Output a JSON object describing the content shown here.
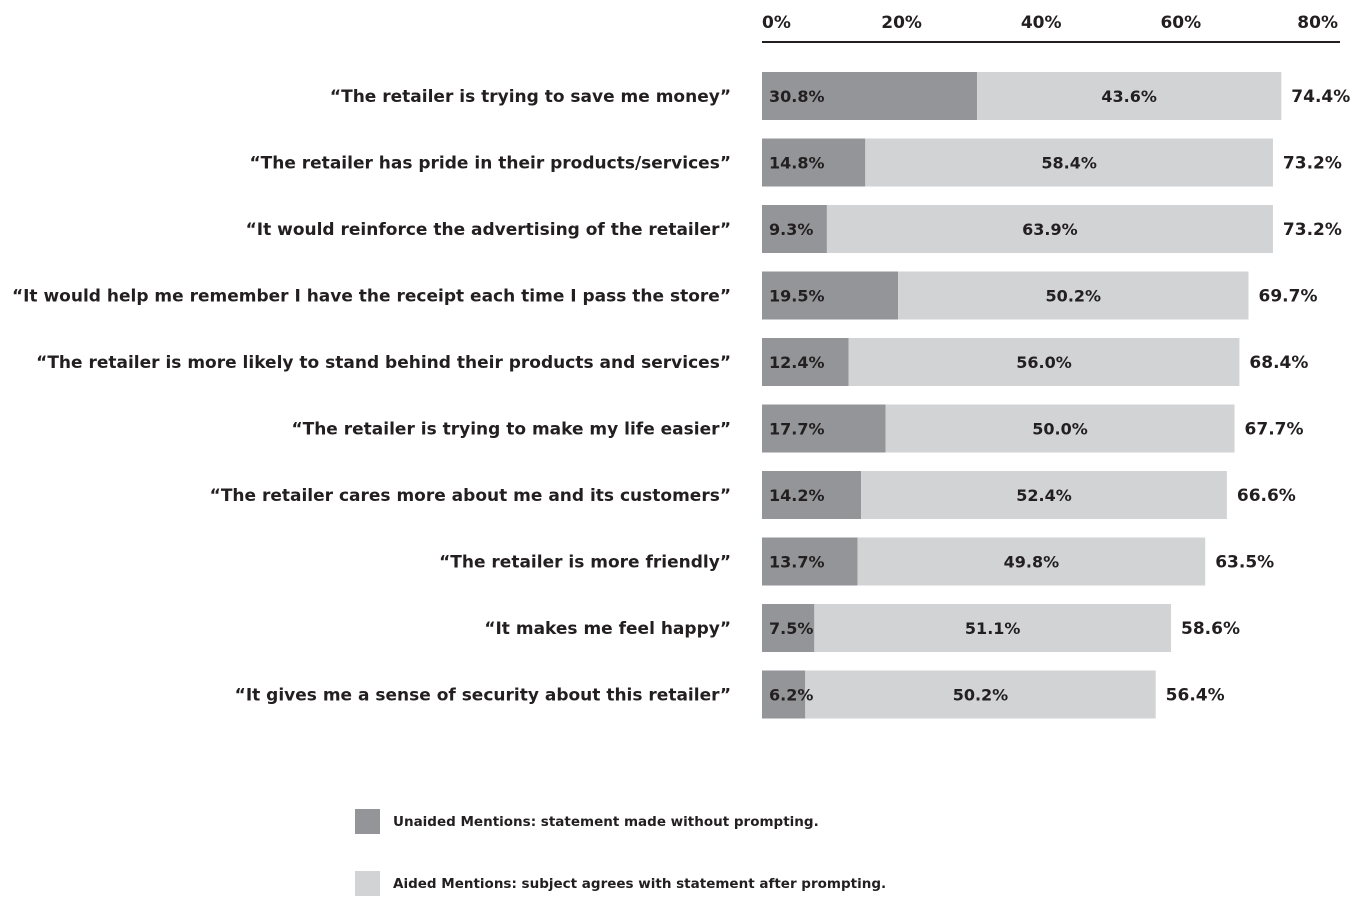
{
  "chart_data": {
    "type": "bar",
    "orientation": "horizontal",
    "stacked": true,
    "categories": [
      "“The retailer is trying to save me money”",
      "“The retailer has pride in their products/services”",
      "“It would reinforce the advertising of the retailer”",
      "“It would help me remember I have the receipt each time I pass the store”",
      "“The retailer is more likely to stand behind their products and services”",
      "“The retailer is trying to make my life easier”",
      "“The retailer cares more about me and its customers”",
      "“The retailer is more friendly”",
      "“It makes me feel happy”",
      "“It gives me a sense of security about this retailer”"
    ],
    "series": [
      {
        "name": "Unaided Mentions: statement made without prompting.",
        "color": "#939598",
        "values": [
          30.8,
          14.8,
          9.3,
          19.5,
          12.4,
          17.7,
          14.2,
          13.7,
          7.5,
          6.2
        ],
        "labels": [
          "30.8%",
          "14.8%",
          "9.3%",
          "19.5%",
          "12.4%",
          "17.7%",
          "14.2%",
          "13.7%",
          "7.5%",
          "6.2%"
        ]
      },
      {
        "name": "Aided Mentions: subject agrees with statement after prompting.",
        "color": "#d1d3d4",
        "values": [
          43.6,
          58.4,
          63.9,
          50.2,
          56.0,
          50.0,
          52.4,
          49.8,
          51.1,
          50.2
        ],
        "labels": [
          "43.6%",
          "58.4%",
          "63.9%",
          "50.2%",
          "56.0%",
          "50.0%",
          "52.4%",
          "49.8%",
          "51.1%",
          "50.2%"
        ]
      }
    ],
    "totals": [
      74.4,
      73.2,
      73.2,
      69.7,
      68.4,
      67.7,
      66.6,
      63.5,
      58.6,
      56.4
    ],
    "total_labels": [
      "74.4%",
      "73.2%",
      "73.2%",
      "69.7%",
      "68.4%",
      "67.7%",
      "66.6%",
      "63.5%",
      "58.6%",
      "56.4%"
    ],
    "xlim": [
      0,
      80
    ],
    "xticks": [
      0,
      20,
      40,
      60,
      80
    ],
    "xtick_labels": [
      "0%",
      "20%",
      "40%",
      "60%",
      "80%"
    ],
    "axis_position": "top",
    "grid": false,
    "legend_position": "bottom"
  },
  "legend": {
    "unaided_label": "Unaided Mentions: statement made without prompting.",
    "aided_label": "Aided Mentions: subject agrees with statement after prompting."
  }
}
